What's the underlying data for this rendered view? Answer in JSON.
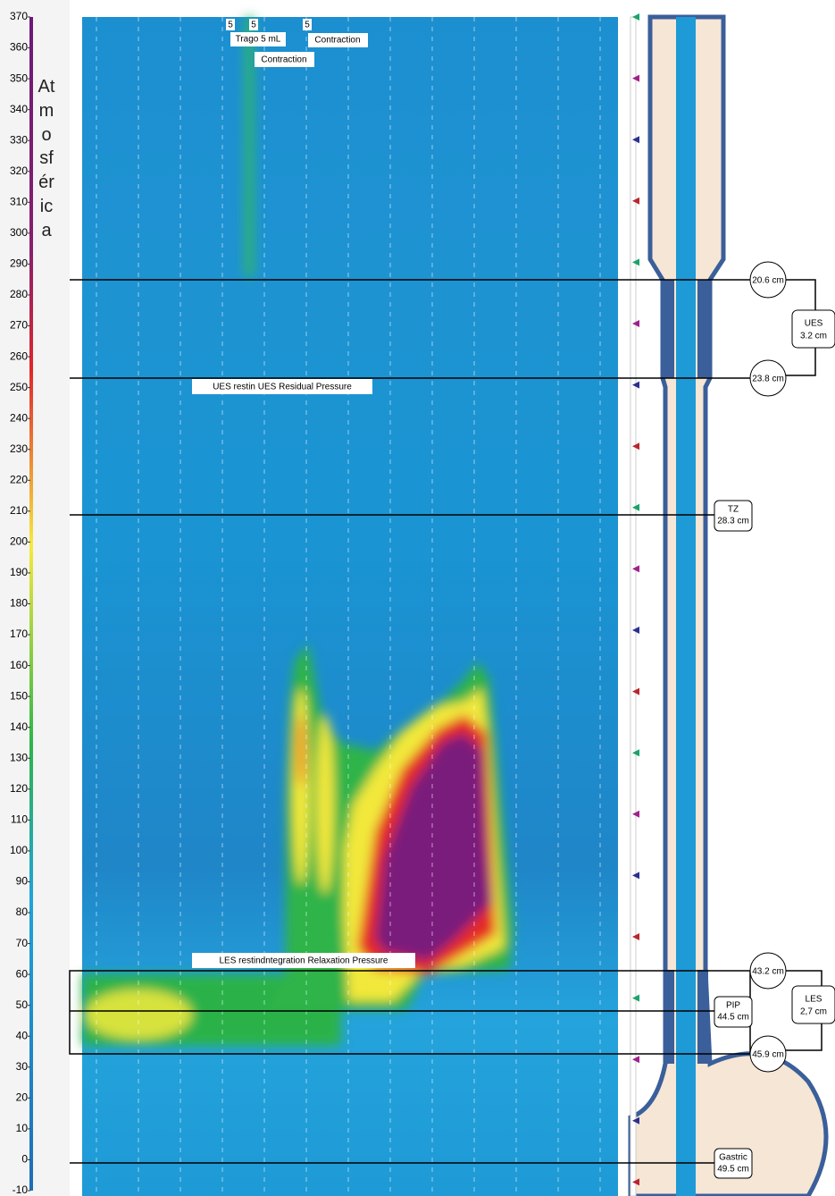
{
  "axis": {
    "label": "Atmosférica",
    "ticks": [
      370,
      360,
      350,
      340,
      330,
      320,
      310,
      300,
      290,
      280,
      270,
      260,
      250,
      240,
      230,
      220,
      210,
      200,
      190,
      180,
      170,
      160,
      150,
      140,
      130,
      120,
      110,
      100,
      90,
      80,
      70,
      60,
      50,
      40,
      30,
      20,
      10,
      0,
      -10
    ]
  },
  "annotations": {
    "markers": [
      "5",
      "5",
      "5"
    ],
    "swallow": "Trago 5 mL",
    "contraction_1": "Contraction",
    "contraction_2": "Contraction",
    "ues_band": "UES restin UES Residual Pressure",
    "les_band": "LES restindntegration Relaxation Pressure"
  },
  "landmarks": {
    "ues_upper": "20.6 cm",
    "ues_lower": "23.8 cm",
    "ues": {
      "name": "UES",
      "size": "3.2 cm"
    },
    "tz": {
      "name": "TZ",
      "depth": "28.3 cm"
    },
    "les_upper": "43.2 cm",
    "pip": {
      "name": "PIP",
      "depth": "44.5 cm"
    },
    "les": {
      "name": "LES",
      "size": "2,7 cm"
    },
    "les_lower": "45.9 cm",
    "gastric": {
      "name": "Gastric",
      "depth": "49.5 cm"
    }
  }
}
